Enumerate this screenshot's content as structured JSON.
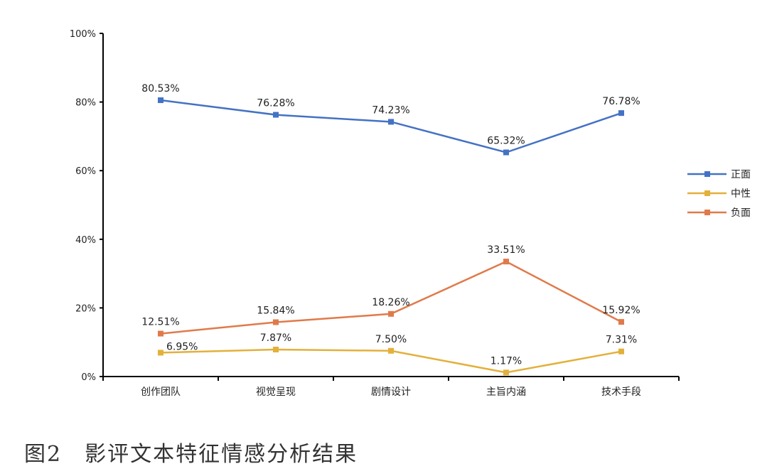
{
  "caption": "图2　影评文本特征情感分析结果",
  "chart_data": {
    "type": "line",
    "categories": [
      "创作团队",
      "视觉呈现",
      "剧情设计",
      "主旨内涵",
      "技术手段"
    ],
    "series": [
      {
        "name": "正面",
        "color": "#4472c4",
        "values": [
          80.53,
          76.28,
          74.23,
          65.32,
          76.78
        ],
        "labels": [
          "80.53%",
          "76.28%",
          "74.23%",
          "65.32%",
          "76.78%"
        ]
      },
      {
        "name": "中性",
        "color": "#e3b03a",
        "values": [
          6.95,
          7.87,
          7.5,
          1.17,
          7.31
        ],
        "labels": [
          "6.95%",
          "7.87%",
          "7.50%",
          "1.17%",
          "7.31%"
        ]
      },
      {
        "name": "负面",
        "color": "#e07a4a",
        "values": [
          12.51,
          15.84,
          18.26,
          33.51,
          15.92
        ],
        "labels": [
          "12.51%",
          "15.84%",
          "18.26%",
          "33.51%",
          "15.92%"
        ]
      }
    ],
    "yticks": [
      "0%",
      "20%",
      "40%",
      "60%",
      "80%",
      "100%"
    ],
    "ylim": [
      0,
      100
    ],
    "legend_position": "right",
    "grid": false
  }
}
